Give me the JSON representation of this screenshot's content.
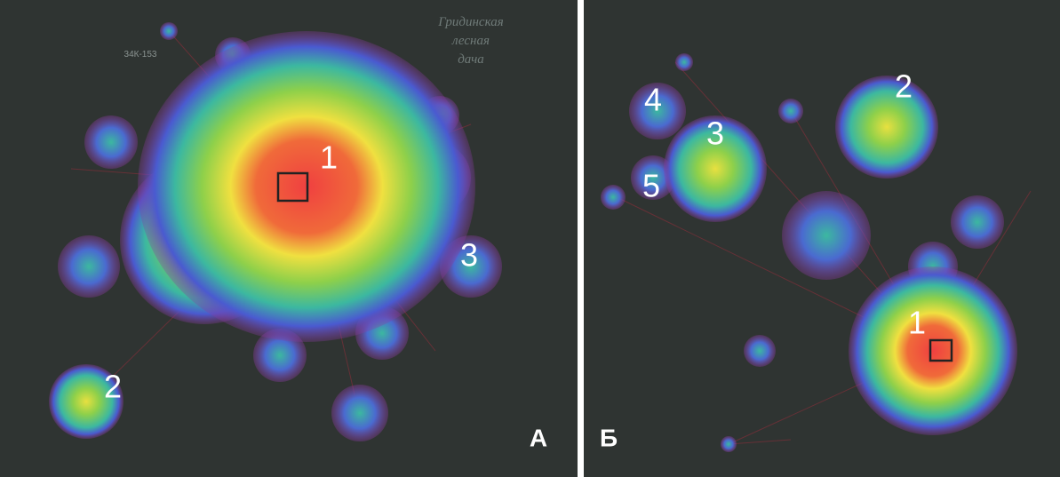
{
  "panels": [
    {
      "label": "А",
      "clusters": [
        "1",
        "2",
        "3"
      ],
      "map_labels": [
        "Гридинская",
        "лесная",
        "дача",
        "34К-153"
      ]
    },
    {
      "label": "Б",
      "clusters": [
        "1",
        "2",
        "3",
        "4",
        "5"
      ]
    }
  ]
}
